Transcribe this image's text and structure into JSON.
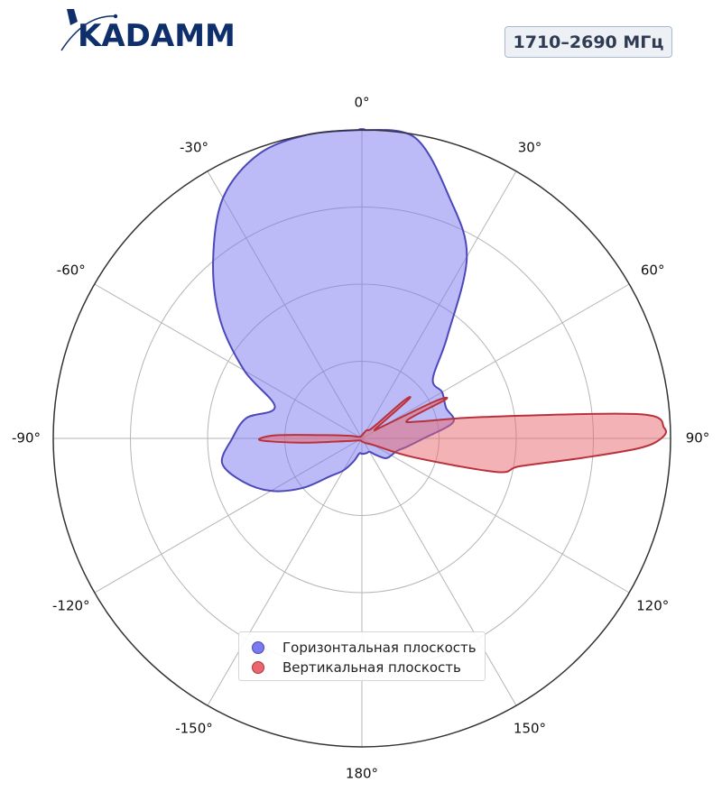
{
  "brand": {
    "name": "KADAMM",
    "accent": "#0e2f6b"
  },
  "badge": {
    "text": "1710–2690 МГц"
  },
  "chart_data": {
    "type": "polar-area",
    "angle_unit": "deg",
    "zero_direction": "top",
    "direction": "clockwise",
    "angular_ticks": [
      0,
      30,
      60,
      90,
      120,
      150,
      180,
      -150,
      -120,
      -90,
      -60,
      -30
    ],
    "angular_tick_labels": [
      "0°",
      "30°",
      "60°",
      "90°",
      "120°",
      "150°",
      "180°",
      "-150°",
      "-120°",
      "-90°",
      "-60°",
      "-30°"
    ],
    "radial_range": [
      0,
      1
    ],
    "radial_gridlines": [
      0.25,
      0.5,
      0.75,
      1.0
    ],
    "radial_tick_labels": "none",
    "grid": true,
    "legend_position": "bottom-center",
    "series": [
      {
        "name": "Горизонтальная плоскость",
        "color": "#7b78f0",
        "edge_color": "#4b48b8",
        "points": [
          [
            0,
            1.0
          ],
          [
            10,
            0.99
          ],
          [
            20,
            0.83
          ],
          [
            30,
            0.68
          ],
          [
            40,
            0.43
          ],
          [
            50,
            0.3
          ],
          [
            60,
            0.3
          ],
          [
            70,
            0.29
          ],
          [
            80,
            0.3
          ],
          [
            90,
            0.2
          ],
          [
            100,
            0.15
          ],
          [
            110,
            0.12
          ],
          [
            120,
            0.11
          ],
          [
            130,
            0.1
          ],
          [
            140,
            0.07
          ],
          [
            150,
            0.05
          ],
          [
            160,
            0.05
          ],
          [
            170,
            0.05
          ],
          [
            180,
            0.05
          ],
          [
            190,
            0.05
          ],
          [
            200,
            0.08
          ],
          [
            210,
            0.12
          ],
          [
            220,
            0.16
          ],
          [
            230,
            0.25
          ],
          [
            240,
            0.34
          ],
          [
            250,
            0.41
          ],
          [
            260,
            0.46
          ],
          [
            270,
            0.42
          ],
          [
            280,
            0.38
          ],
          [
            290,
            0.3
          ],
          [
            300,
            0.44
          ],
          [
            310,
            0.6
          ],
          [
            320,
            0.75
          ],
          [
            330,
            0.9
          ],
          [
            340,
            0.98
          ],
          [
            350,
            1.0
          ],
          [
            360,
            1.0
          ]
        ]
      },
      {
        "name": "Вертикальная плоскость",
        "color": "#e8666e",
        "edge_color": "#b8323c",
        "points": [
          [
            0,
            0.01
          ],
          [
            30,
            0.03
          ],
          [
            45,
            0.05
          ],
          [
            48,
            0.18
          ],
          [
            50,
            0.2
          ],
          [
            52,
            0.1
          ],
          [
            56,
            0.05
          ],
          [
            60,
            0.08
          ],
          [
            63,
            0.26
          ],
          [
            65,
            0.3
          ],
          [
            68,
            0.16
          ],
          [
            74,
            0.2
          ],
          [
            80,
            0.4
          ],
          [
            85,
            0.9
          ],
          [
            88,
            0.98
          ],
          [
            90,
            0.97
          ],
          [
            92,
            0.9
          ],
          [
            95,
            0.72
          ],
          [
            100,
            0.52
          ],
          [
            104,
            0.45
          ],
          [
            110,
            0.18
          ],
          [
            118,
            0.05
          ],
          [
            140,
            0.02
          ],
          [
            180,
            0.01
          ],
          [
            230,
            0.01
          ],
          [
            260,
            0.05
          ],
          [
            266,
            0.2
          ],
          [
            269,
            0.33
          ],
          [
            272,
            0.28
          ],
          [
            275,
            0.12
          ],
          [
            282,
            0.04
          ],
          [
            300,
            0.01
          ],
          [
            360,
            0.01
          ]
        ]
      }
    ]
  }
}
